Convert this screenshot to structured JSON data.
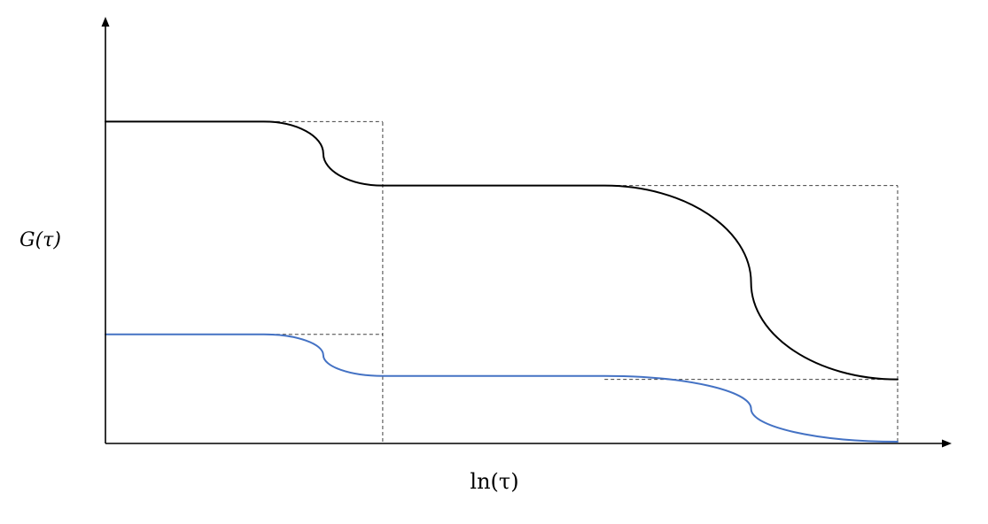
{
  "chart_data": {
    "type": "line",
    "title": "",
    "xlabel": "ln(τ)",
    "ylabel": "G(τ)",
    "xlim": [
      0,
      100
    ],
    "ylim": [
      0,
      100
    ],
    "grid": false,
    "legend": "none",
    "series": [
      {
        "color": "#000000",
        "plateaus": [
          {
            "x": [
              0,
              20
            ],
            "y": 92.5
          },
          {
            "x": [
              35,
              63
            ],
            "y": 74
          },
          {
            "x": [
              100,
              100
            ],
            "y": 18
          }
        ],
        "steps": [
          {
            "x_start": 20,
            "x_inflect": 27.5,
            "x_end": 35,
            "y_start": 92.5,
            "y_end": 74
          },
          {
            "x_start": 63,
            "x_inflect": 81.5,
            "x_end": 100,
            "y_start": 74,
            "y_end": 18
          }
        ]
      },
      {
        "color": "#4472C4",
        "plateaus": [
          {
            "x": [
              0,
              20
            ],
            "y": 31
          },
          {
            "x": [
              35,
              63
            ],
            "y": 19
          },
          {
            "x": [
              100,
              100
            ],
            "y": 0
          }
        ],
        "steps": [
          {
            "x_start": 20,
            "x_inflect": 27.5,
            "x_end": 35,
            "y_start": 31,
            "y_end": 19
          },
          {
            "x_start": 63,
            "x_inflect": 81.5,
            "x_end": 100,
            "y_start": 19,
            "y_end": 0
          }
        ]
      }
    ],
    "guides": [
      {
        "type": "hline",
        "x": [
          20,
          35
        ],
        "y": 92.5
      },
      {
        "type": "hline",
        "x": [
          20,
          35
        ],
        "y": 31
      },
      {
        "type": "hline",
        "x": [
          63,
          100
        ],
        "y": 74
      },
      {
        "type": "hline",
        "x": [
          63,
          100
        ],
        "y": 18
      },
      {
        "type": "vline",
        "x": 35,
        "y": [
          0,
          92.5
        ]
      },
      {
        "type": "vline",
        "x": 100,
        "y": [
          0,
          74
        ]
      }
    ]
  }
}
